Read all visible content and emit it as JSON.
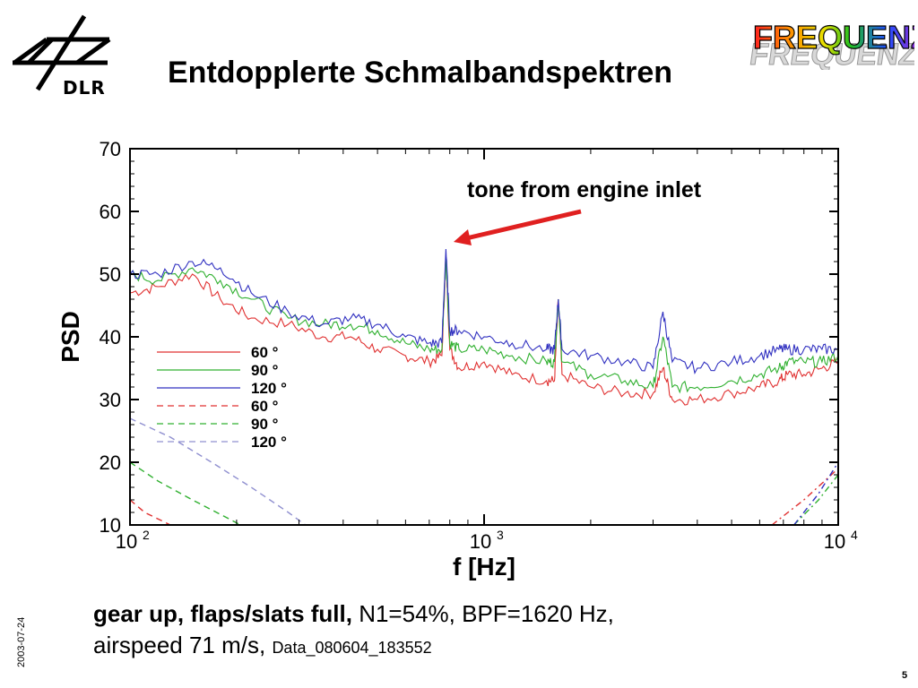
{
  "header": {
    "logo_text": "DLR",
    "title": "Entdopplerte Schmalbandspektren",
    "badge_text": "FREQUENZ"
  },
  "annotation": {
    "text": "tone from engine inlet"
  },
  "caption": {
    "line1_bold": "gear up, flaps/slats full,",
    "line1_rest": " N1=54%, BPF=1620 Hz,",
    "line2_main": "airspeed 71 m/s, ",
    "line2_small": "Data_080604_183552"
  },
  "footer": {
    "date": "2003-07-24",
    "page": "5"
  },
  "chart_data": {
    "type": "line",
    "xlabel": "f [Hz]",
    "ylabel": "PSD",
    "xscale": "log",
    "xlim": [
      100,
      10000
    ],
    "ylim": [
      10,
      70
    ],
    "yticks": [
      10,
      20,
      30,
      40,
      50,
      60,
      70
    ],
    "xticks": [
      {
        "value": 100,
        "base": "10",
        "exp": "2"
      },
      {
        "value": 1000,
        "base": "10",
        "exp": "3"
      },
      {
        "value": 10000,
        "base": "10",
        "exp": "4"
      }
    ],
    "legend_position": "left",
    "series": [
      {
        "name": "60 °",
        "color": "#e03030",
        "dash": "solid",
        "x": [
          100,
          120,
          150,
          180,
          220,
          280,
          350,
          420,
          500,
          600,
          700,
          760,
          780,
          800,
          850,
          1000,
          1200,
          1500,
          1580,
          1620,
          1660,
          2000,
          2500,
          3000,
          3200,
          3400,
          4000,
          5000,
          6000,
          6800,
          7200,
          8000,
          9000,
          10000
        ],
        "y": [
          47,
          48,
          50,
          46,
          43,
          42,
          40,
          40,
          38,
          37,
          36,
          37,
          53,
          38,
          35,
          36,
          34,
          33,
          33,
          46,
          34,
          32,
          31,
          31,
          35,
          30,
          30,
          31,
          32,
          33,
          34,
          34,
          35,
          36
        ]
      },
      {
        "name": "90 °",
        "color": "#30b030",
        "dash": "solid",
        "x": [
          100,
          120,
          150,
          180,
          220,
          280,
          350,
          420,
          500,
          600,
          700,
          760,
          780,
          800,
          850,
          1000,
          1200,
          1500,
          1580,
          1620,
          1660,
          2000,
          2500,
          3000,
          3200,
          3400,
          4000,
          5000,
          6000,
          6800,
          7200,
          8000,
          9000,
          10000
        ],
        "y": [
          50,
          49,
          51,
          49,
          46,
          43,
          42,
          42,
          41,
          39,
          38,
          38,
          53,
          39,
          38,
          38,
          37,
          36,
          36,
          46,
          36,
          34,
          33,
          32,
          40,
          32,
          32,
          33,
          34,
          35,
          36,
          36,
          36,
          37
        ]
      },
      {
        "name": "120 °",
        "color": "#3030c0",
        "dash": "solid",
        "x": [
          100,
          120,
          150,
          180,
          220,
          280,
          350,
          420,
          500,
          600,
          700,
          760,
          780,
          800,
          850,
          1000,
          1200,
          1500,
          1580,
          1620,
          1660,
          2000,
          2500,
          3000,
          3200,
          3400,
          4000,
          5000,
          6000,
          6800,
          7200,
          8000,
          9000,
          10000
        ],
        "y": [
          50,
          50,
          52,
          51,
          47,
          44,
          42,
          43,
          42,
          40,
          39,
          39,
          54,
          41,
          41,
          40,
          39,
          38,
          38,
          46,
          38,
          37,
          36,
          35,
          44,
          36,
          35,
          36,
          37,
          38,
          38,
          38,
          38,
          38
        ]
      },
      {
        "name": "60 °",
        "color": "#e03030",
        "dash": "dashed",
        "x": [
          100,
          110,
          130,
          160,
          200,
          240
        ],
        "y": [
          14,
          12,
          10,
          8,
          6,
          4
        ]
      },
      {
        "name": "90 °",
        "color": "#30b030",
        "dash": "dashed",
        "x": [
          100,
          120,
          150,
          190,
          240,
          300
        ],
        "y": [
          20,
          17,
          14,
          11,
          8,
          5
        ]
      },
      {
        "name": "120 °",
        "color": "#9090d0",
        "dash": "dashed",
        "x": [
          100,
          130,
          170,
          220,
          280,
          350
        ],
        "y": [
          27,
          24,
          20,
          16,
          12,
          8
        ]
      }
    ],
    "right_rising": [
      {
        "color": "#e03030",
        "x": [
          6500,
          8000,
          10000
        ],
        "y": [
          10,
          14,
          19
        ]
      },
      {
        "color": "#30b030",
        "x": [
          7500,
          8800,
          10000
        ],
        "y": [
          10,
          14,
          18
        ]
      },
      {
        "color": "#3030c0",
        "x": [
          7500,
          8800,
          10000
        ],
        "y": [
          10,
          15,
          20
        ]
      }
    ]
  }
}
